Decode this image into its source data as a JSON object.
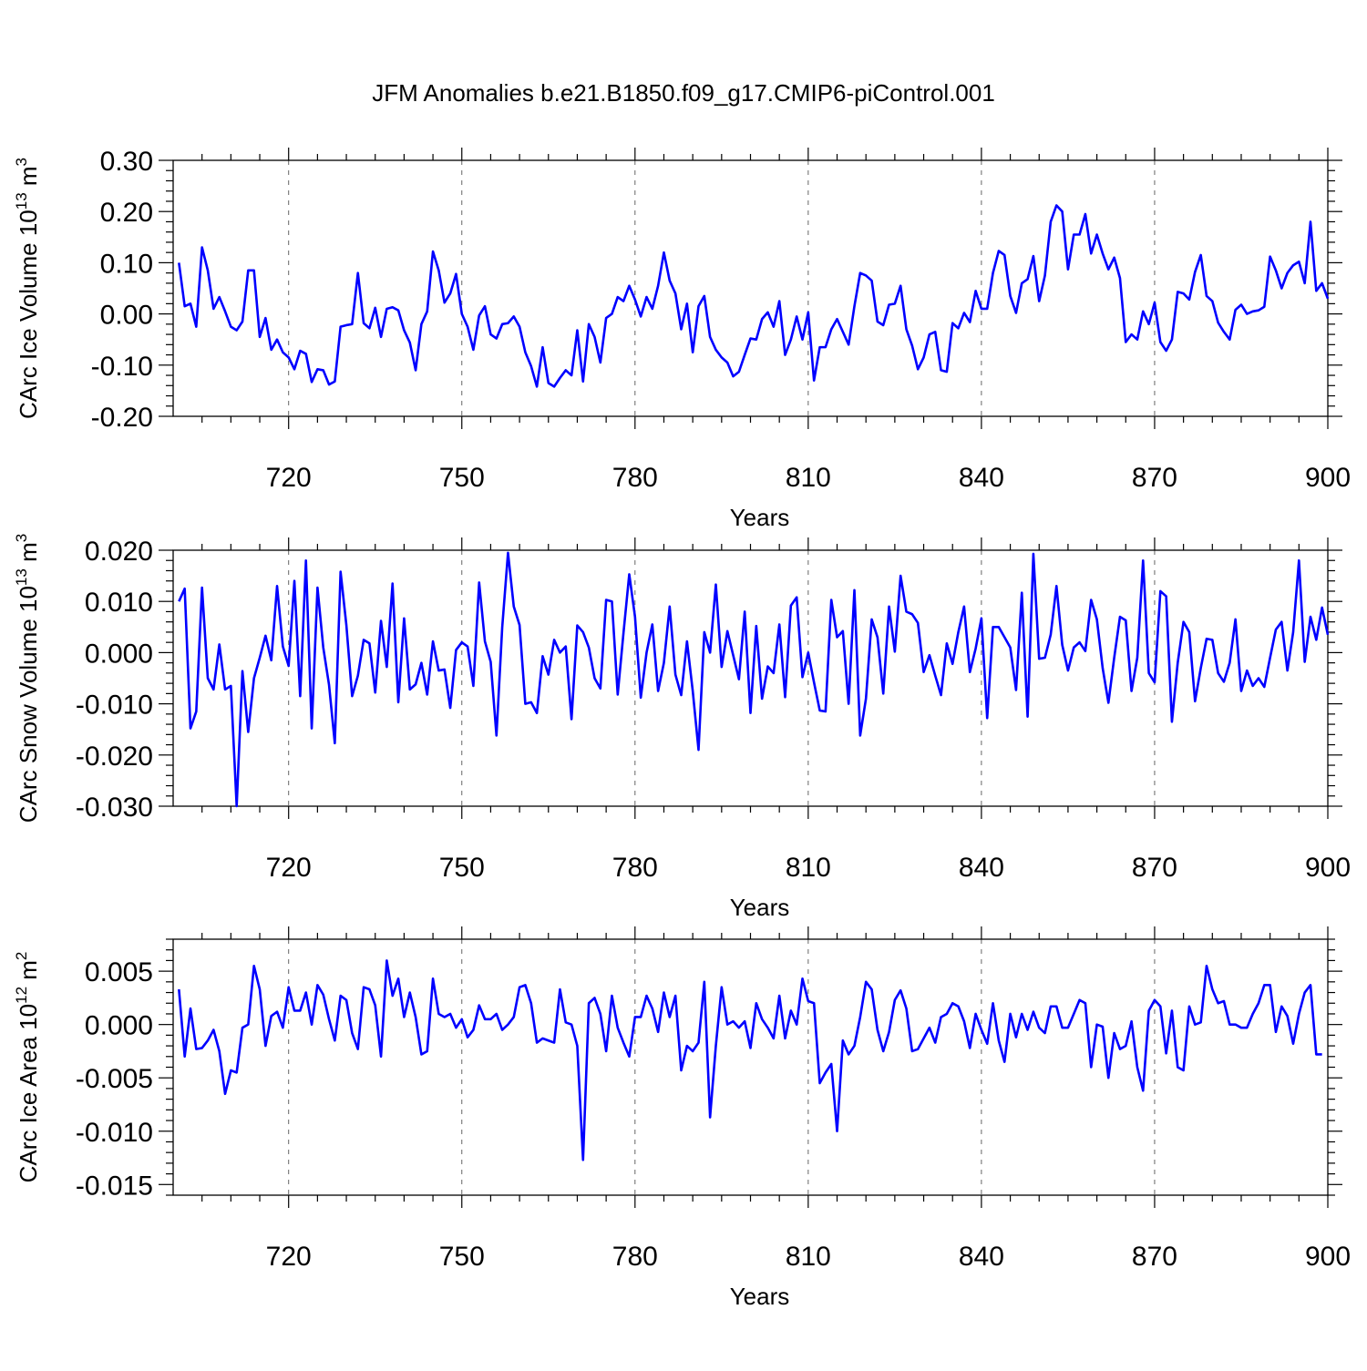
{
  "figure": {
    "title": "JFM Anomalies b.e21.B1850.f09_g17.CMIP6-piControl.001"
  },
  "chart_data": [
    {
      "type": "line",
      "title": "JFM Anomalies b.e21.B1850.f09_g17.CMIP6-piControl.001",
      "xlabel": "Years",
      "ylabel": {
        "main": "CArc Ice Volume 10",
        "exp": "13",
        "unit": " m",
        "unit_exp": "3"
      },
      "xlim": [
        700,
        900
      ],
      "ylim": [
        -0.2,
        0.3
      ],
      "xticks": [
        720,
        750,
        780,
        810,
        840,
        870,
        900
      ],
      "yticks": [
        -0.2,
        -0.1,
        0.0,
        0.1,
        0.2,
        0.3
      ],
      "ytick_labels": [
        "-0.20",
        "-0.10",
        "0.00",
        "0.10",
        "0.20",
        "0.30"
      ],
      "grid": "vertical dashed at x ticks",
      "series": [
        {
          "color": "#0000ff",
          "x_start": 701,
          "values": [
            0.1,
            0.015,
            0.02,
            -0.025,
            0.13,
            0.085,
            0.01,
            0.033,
            0.005,
            -0.025,
            -0.032,
            -0.015,
            0.085,
            0.085,
            -0.045,
            -0.008,
            -0.07,
            -0.05,
            -0.075,
            -0.085,
            -0.108,
            -0.072,
            -0.078,
            -0.133,
            -0.108,
            -0.11,
            -0.138,
            -0.132,
            -0.025,
            -0.022,
            -0.02,
            0.08,
            -0.018,
            -0.028,
            0.012,
            -0.045,
            0.01,
            0.013,
            0.007,
            -0.032,
            -0.056,
            -0.11,
            -0.02,
            0.005,
            0.122,
            0.085,
            0.022,
            0.04,
            0.078,
            0.0,
            -0.025,
            -0.07,
            -0.003,
            0.015,
            -0.04,
            -0.048,
            -0.02,
            -0.018,
            -0.005,
            -0.025,
            -0.075,
            -0.102,
            -0.142,
            -0.065,
            -0.135,
            -0.142,
            -0.125,
            -0.11,
            -0.12,
            -0.032,
            -0.132,
            -0.02,
            -0.045,
            -0.095,
            -0.008,
            0.0,
            0.033,
            0.025,
            0.055,
            0.028,
            -0.005,
            0.033,
            0.01,
            0.055,
            0.12,
            0.065,
            0.04,
            -0.03,
            0.02,
            -0.075,
            0.015,
            0.035,
            -0.045,
            -0.07,
            -0.085,
            -0.095,
            -0.122,
            -0.113,
            -0.08,
            -0.048,
            -0.05,
            -0.01,
            0.003,
            -0.025,
            0.025,
            -0.08,
            -0.05,
            -0.005,
            -0.05,
            0.003,
            -0.13,
            -0.065,
            -0.065,
            -0.03,
            -0.01,
            -0.035,
            -0.06,
            0.015,
            0.08,
            0.075,
            0.065,
            -0.015,
            -0.022,
            0.018,
            0.02,
            0.055,
            -0.03,
            -0.062,
            -0.108,
            -0.085,
            -0.04,
            -0.035,
            -0.11,
            -0.113,
            -0.018,
            -0.028,
            0.002,
            -0.016,
            0.045,
            0.01,
            0.01,
            0.08,
            0.123,
            0.115,
            0.035,
            0.002,
            0.06,
            0.068,
            0.113,
            0.025,
            0.075,
            0.18,
            0.212,
            0.2,
            0.087,
            0.155,
            0.155,
            0.195,
            0.118,
            0.155,
            0.118,
            0.087,
            0.11,
            0.07,
            -0.055,
            -0.04,
            -0.05,
            0.005,
            -0.02,
            0.022,
            -0.055,
            -0.072,
            -0.05,
            0.043,
            0.04,
            0.028,
            0.082,
            0.115,
            0.035,
            0.025,
            -0.017,
            -0.035,
            -0.05,
            0.008,
            0.018,
            0.0,
            0.005,
            0.007,
            0.014,
            0.112,
            0.085,
            0.05,
            0.08,
            0.095,
            0.102,
            0.06,
            0.18,
            0.045,
            0.06,
            0.03
          ]
        }
      ]
    },
    {
      "type": "line",
      "xlabel": "Years",
      "ylabel": {
        "main": "CArc Snow Volume 10",
        "exp": "13",
        "unit": " m",
        "unit_exp": "3"
      },
      "xlim": [
        700,
        900
      ],
      "ylim": [
        -0.03,
        0.02
      ],
      "xticks": [
        720,
        750,
        780,
        810,
        840,
        870,
        900
      ],
      "yticks": [
        -0.03,
        -0.02,
        -0.01,
        0.0,
        0.01,
        0.02
      ],
      "ytick_labels": [
        "-0.030",
        "-0.020",
        "-0.010",
        "0.000",
        "0.010",
        "0.020"
      ],
      "grid": "vertical dashed at x ticks",
      "series": [
        {
          "color": "#0000ff",
          "x_start": 701,
          "values": [
            0.01,
            0.0125,
            -0.0148,
            -0.0115,
            0.0127,
            -0.005,
            -0.0072,
            0.0016,
            -0.0072,
            -0.0065,
            -0.03,
            -0.0036,
            -0.0155,
            -0.005,
            -0.001,
            0.0033,
            -0.0015,
            0.013,
            0.0012,
            -0.0026,
            0.014,
            -0.0085,
            0.018,
            -0.0148,
            0.0127,
            0.001,
            -0.0063,
            -0.0177,
            0.0158,
            0.0054,
            -0.0085,
            -0.0045,
            0.0025,
            0.0018,
            -0.0078,
            0.0062,
            -0.0028,
            0.0135,
            -0.0097,
            0.0067,
            -0.0072,
            -0.0062,
            -0.002,
            -0.0082,
            0.0022,
            -0.0035,
            -0.0033,
            -0.0108,
            0.0005,
            0.002,
            0.0012,
            -0.0065,
            0.0137,
            0.0022,
            -0.0018,
            -0.0162,
            0.005,
            0.0195,
            0.009,
            0.0054,
            -0.01,
            -0.0097,
            -0.0118,
            -0.0007,
            -0.0043,
            0.0025,
            0.0,
            0.0012,
            -0.013,
            0.0053,
            0.004,
            0.001,
            -0.005,
            -0.007,
            0.0103,
            0.01,
            -0.0082,
            0.0038,
            0.0153,
            0.007,
            -0.0088,
            0.0,
            0.0055,
            -0.0075,
            -0.002,
            0.009,
            -0.0043,
            -0.0083,
            0.0022,
            -0.0075,
            -0.019,
            0.004,
            0.0,
            0.0133,
            -0.0028,
            0.0042,
            -0.0005,
            -0.0052,
            0.008,
            -0.0118,
            0.0052,
            -0.009,
            -0.0027,
            -0.004,
            0.0055,
            -0.0087,
            0.0092,
            0.0108,
            -0.0048,
            0.0,
            -0.0058,
            -0.0113,
            -0.0115,
            0.0103,
            0.003,
            0.0042,
            -0.01,
            0.0122,
            -0.0162,
            -0.009,
            0.0065,
            0.003,
            -0.008,
            0.009,
            0.0002,
            0.015,
            0.008,
            0.0075,
            0.0058,
            -0.0038,
            -0.0005,
            -0.0045,
            -0.0083,
            0.0018,
            -0.0022,
            0.004,
            0.009,
            -0.0038,
            0.0008,
            0.0067,
            -0.0128,
            0.005,
            0.005,
            0.003,
            0.001,
            -0.0073,
            0.0117,
            -0.0125,
            0.0193,
            -0.0012,
            -0.001,
            0.0035,
            0.013,
            0.0015,
            -0.0035,
            0.001,
            0.002,
            0.0003,
            0.0103,
            0.0065,
            -0.003,
            -0.0098,
            -0.001,
            0.007,
            0.0063,
            -0.0075,
            -0.001,
            0.018,
            -0.004,
            -0.0058,
            0.012,
            0.011,
            -0.0135,
            -0.002,
            0.006,
            0.004,
            -0.0095,
            -0.003,
            0.0027,
            0.0025,
            -0.004,
            -0.0057,
            -0.002,
            0.0065,
            -0.0075,
            -0.0035,
            -0.0065,
            -0.005,
            -0.0067,
            -0.001,
            0.0045,
            0.006,
            -0.0035,
            0.004,
            0.018,
            -0.0018,
            0.007,
            0.0025,
            0.0088,
            0.0035
          ]
        }
      ]
    },
    {
      "type": "line",
      "xlabel": "Years",
      "ylabel": {
        "main": "CArc Ice Area 10",
        "exp": "12",
        "unit": " m",
        "unit_exp": "2"
      },
      "xlim": [
        700,
        900
      ],
      "ylim": [
        -0.016,
        0.008
      ],
      "xticks": [
        720,
        750,
        780,
        810,
        840,
        870,
        900
      ],
      "yticks": [
        -0.015,
        -0.01,
        -0.005,
        0.0,
        0.005
      ],
      "ytick_labels": [
        "-0.015",
        "-0.010",
        "-0.005",
        "0.000",
        "0.005"
      ],
      "grid": "vertical dashed at x ticks",
      "series": [
        {
          "color": "#0000ff",
          "x_start": 701,
          "values": [
            0.0033,
            -0.003,
            0.0015,
            -0.0023,
            -0.0022,
            -0.0015,
            -0.0005,
            -0.0025,
            -0.0065,
            -0.0043,
            -0.0045,
            -0.0003,
            0.0,
            0.0055,
            0.0033,
            -0.002,
            0.0008,
            0.0012,
            -0.0003,
            0.0035,
            0.0013,
            0.0013,
            0.003,
            0.0,
            0.0037,
            0.0028,
            0.0005,
            -0.0015,
            0.0027,
            0.0023,
            -0.0008,
            -0.0023,
            0.0035,
            0.0033,
            0.0018,
            -0.003,
            0.006,
            0.0027,
            0.0043,
            0.0007,
            0.003,
            0.0007,
            -0.0028,
            -0.0025,
            0.0043,
            0.001,
            0.0007,
            0.001,
            -0.0003,
            0.0005,
            -0.0012,
            -0.0005,
            0.0018,
            0.0005,
            0.0005,
            0.001,
            -0.0005,
            0.0,
            0.0007,
            0.0035,
            0.0037,
            0.002,
            -0.0017,
            -0.0013,
            -0.0015,
            -0.0017,
            0.0033,
            0.0002,
            0.0,
            -0.002,
            -0.0127,
            0.002,
            0.0025,
            0.001,
            -0.0025,
            0.0027,
            -0.0003,
            -0.0017,
            -0.003,
            0.0007,
            0.0007,
            0.0027,
            0.0015,
            -0.0007,
            0.003,
            0.0007,
            0.0027,
            -0.0043,
            -0.002,
            -0.0025,
            -0.0017,
            0.004,
            -0.0087,
            -0.002,
            0.0035,
            0.0,
            0.0003,
            -0.0003,
            0.0003,
            -0.0022,
            0.002,
            0.0005,
            -0.0003,
            -0.0013,
            0.0027,
            -0.0013,
            0.0013,
            0.0,
            0.0043,
            0.0022,
            0.002,
            -0.0055,
            -0.0045,
            -0.0037,
            -0.01,
            -0.0015,
            -0.0028,
            -0.002,
            0.0007,
            0.004,
            0.0033,
            -0.0005,
            -0.0025,
            -0.0007,
            0.0023,
            0.0032,
            0.0015,
            -0.0025,
            -0.0023,
            -0.0013,
            -0.0003,
            -0.0017,
            0.0007,
            0.001,
            0.002,
            0.0017,
            0.0003,
            -0.0022,
            0.001,
            -0.0005,
            -0.0018,
            0.002,
            -0.0015,
            -0.0035,
            0.001,
            -0.0012,
            0.001,
            -0.0005,
            0.0012,
            -0.0003,
            -0.0008,
            0.0017,
            0.0017,
            -0.0003,
            -0.0003,
            0.001,
            0.0023,
            0.002,
            -0.004,
            0.0,
            -0.0002,
            -0.005,
            -0.0008,
            -0.0023,
            -0.002,
            0.0003,
            -0.004,
            -0.0062,
            0.0013,
            0.0023,
            0.0017,
            -0.0027,
            0.0013,
            -0.004,
            -0.0043,
            0.0017,
            0.0,
            0.0002,
            0.0055,
            0.0033,
            0.002,
            0.0022,
            0.0,
            0.0,
            -0.0003,
            -0.0003,
            0.001,
            0.002,
            0.0037,
            0.0037,
            -0.0007,
            0.0017,
            0.0008,
            -0.0018,
            0.001,
            0.003,
            0.0037,
            -0.0028,
            -0.0028
          ]
        }
      ]
    }
  ]
}
